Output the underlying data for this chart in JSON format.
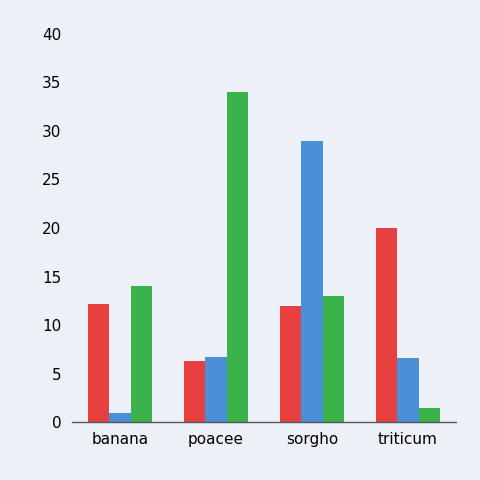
{
  "categories": [
    "banana",
    "poacee",
    "sorgho",
    "triticum"
  ],
  "series": {
    "red": [
      12.2,
      6.3,
      12.0,
      20.0
    ],
    "blue": [
      1.0,
      6.7,
      29.0,
      6.6
    ],
    "green": [
      14.0,
      34.0,
      13.0,
      1.5
    ]
  },
  "colors": {
    "red": "#e84040",
    "blue": "#4a90d9",
    "green": "#3cb34a"
  },
  "ylim": [
    0,
    40
  ],
  "yticks": [
    0,
    5,
    10,
    15,
    20,
    25,
    30,
    35,
    40
  ],
  "background_color": "#edf1f7",
  "bar_width": 0.22,
  "tick_fontsize": 11,
  "label_fontsize": 11
}
